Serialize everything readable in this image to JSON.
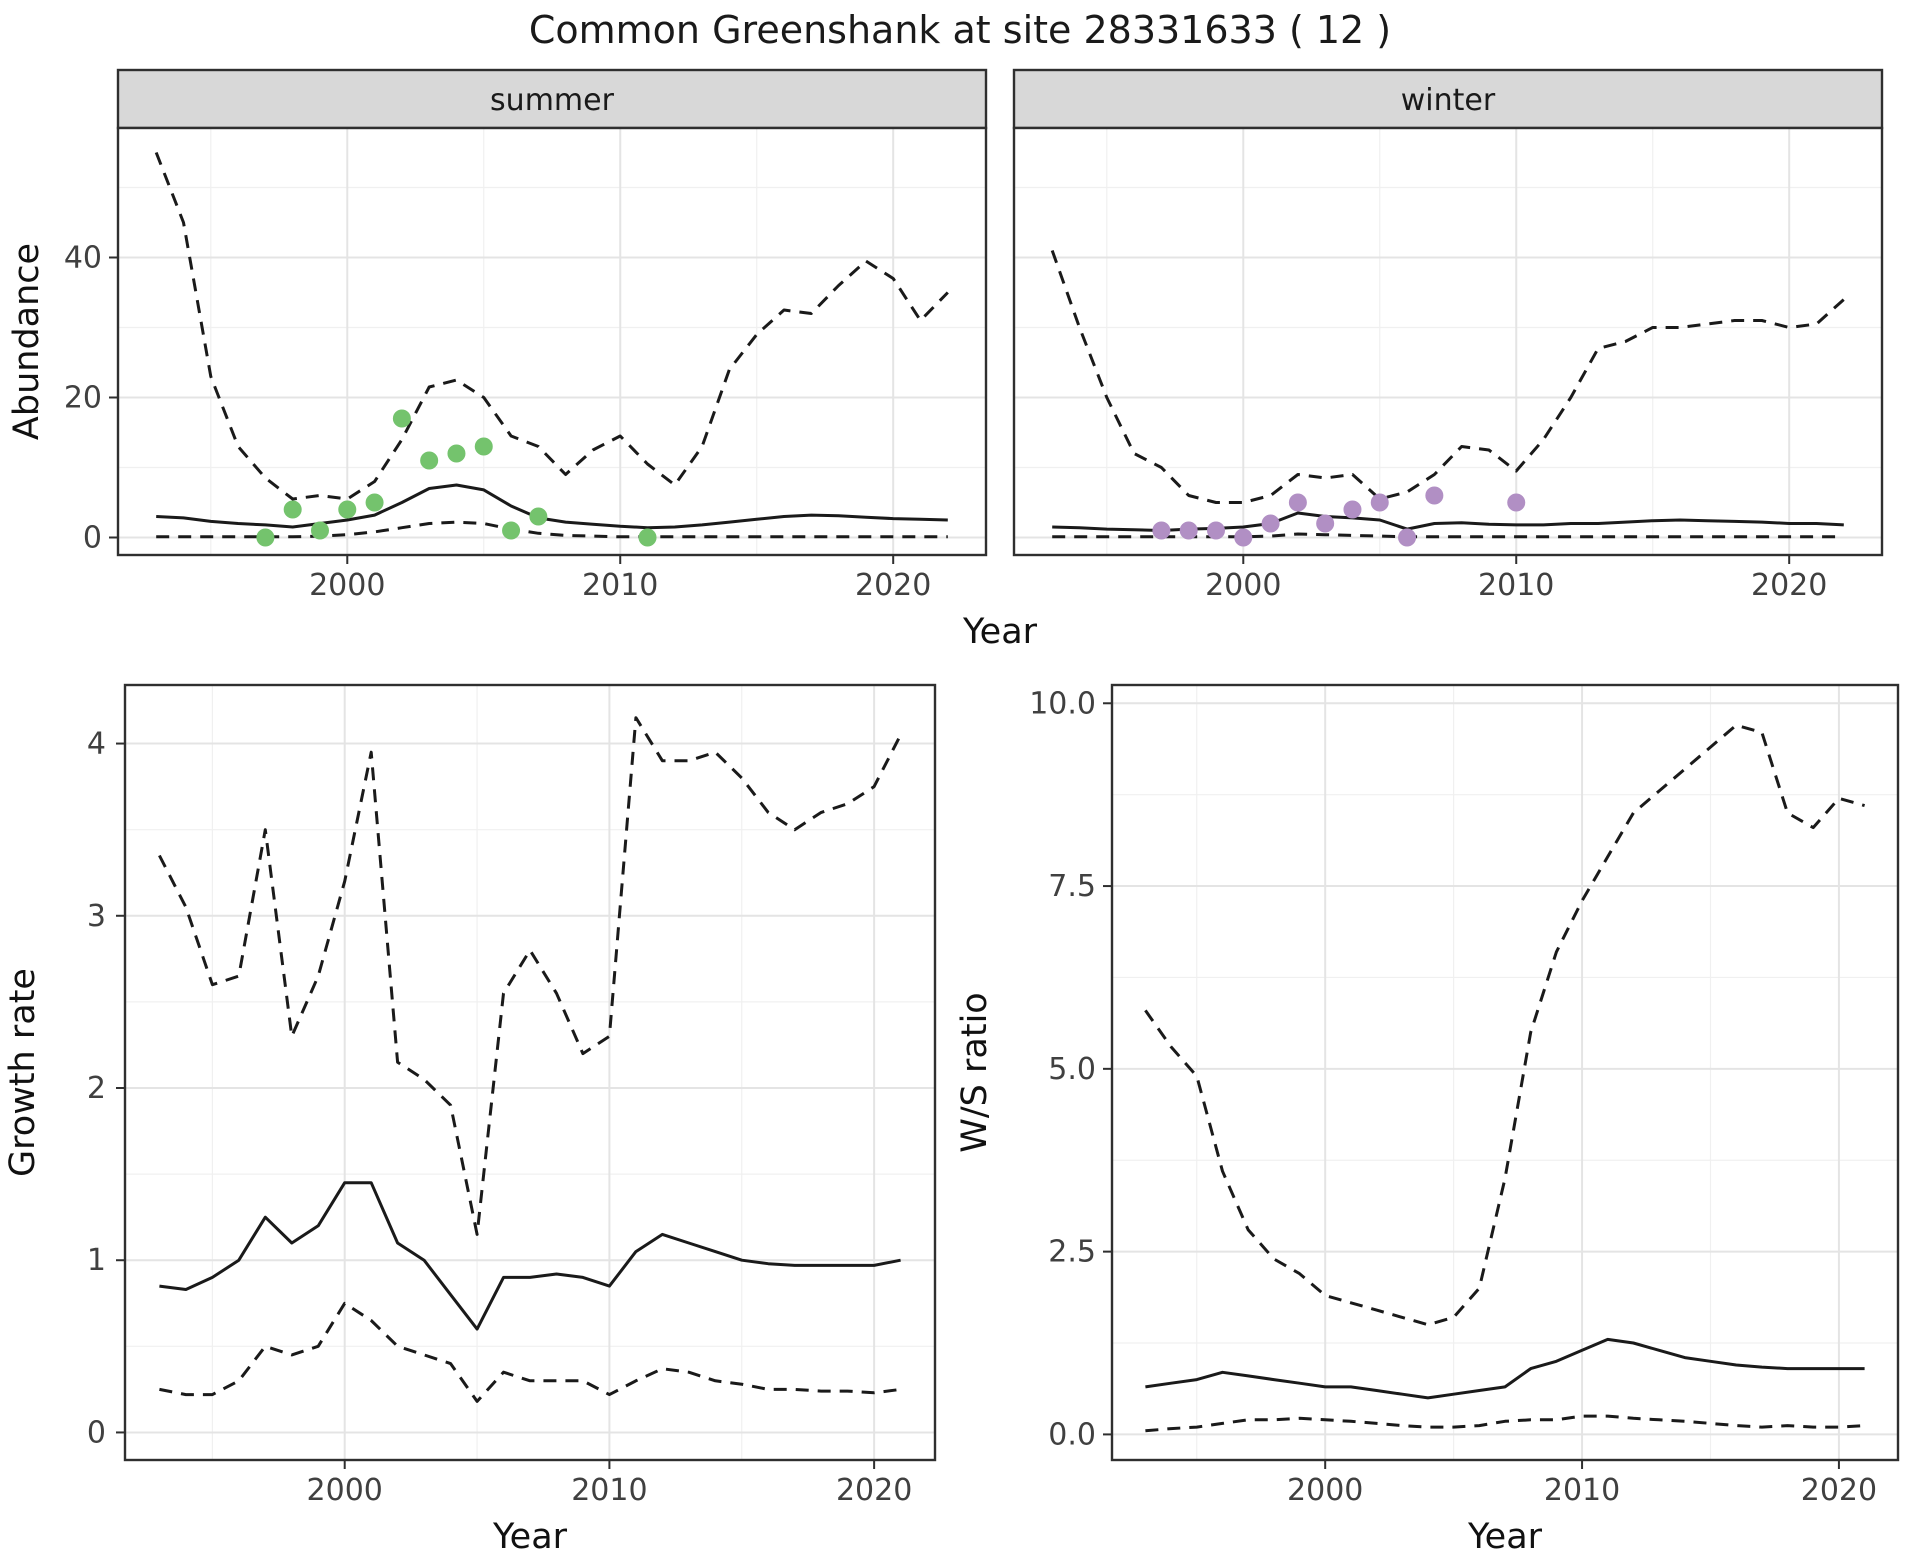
{
  "title": "Common Greenshank at site 28331633 ( 12 )",
  "colors": {
    "line": "#1a1a1a",
    "summer_points": "#74c36d",
    "winter_points": "#b18fc4",
    "strip_fill": "#d8d8d8",
    "panel_border": "#2f2f2f",
    "grid_major": "#e4e4e4",
    "grid_minor": "#f0f0f0",
    "tick_text": "#404040",
    "axis_title": "#111111"
  },
  "chart_data": [
    {
      "id": "abundance-summer",
      "type": "line",
      "facet_label": "summer",
      "xlabel": "Year",
      "ylabel": "Abundance",
      "xlim": [
        1991.6,
        2023.4
      ],
      "ylim": [
        -2.5,
        58.5
      ],
      "xticks": [
        2000,
        2010,
        2020
      ],
      "xtick_labels": [
        "2000",
        "2010",
        "2020"
      ],
      "yticks": [
        0,
        20,
        40
      ],
      "ytick_labels": [
        "0",
        "20",
        "40"
      ],
      "x": [
        1993,
        1994,
        1995,
        1996,
        1997,
        1998,
        1999,
        2000,
        2001,
        2002,
        2003,
        2004,
        2005,
        2006,
        2007,
        2008,
        2009,
        2010,
        2011,
        2012,
        2013,
        2014,
        2015,
        2016,
        2017,
        2018,
        2019,
        2020,
        2021,
        2022
      ],
      "series": [
        {
          "name": "upper-95ci",
          "style": "dashed",
          "values": [
            55,
            45,
            23,
            13,
            8.5,
            5.5,
            6,
            5.5,
            8,
            14,
            21.5,
            22.5,
            20,
            14.5,
            13,
            9,
            12.5,
            14.5,
            10.5,
            7.5,
            13,
            24,
            29,
            32.5,
            32,
            36,
            39.5,
            37,
            31,
            35
          ]
        },
        {
          "name": "mean",
          "style": "solid",
          "values": [
            3,
            2.8,
            2.3,
            2,
            1.8,
            1.5,
            2,
            2.5,
            3.2,
            5,
            7,
            7.5,
            6.8,
            4.5,
            2.8,
            2.2,
            1.9,
            1.6,
            1.4,
            1.5,
            1.8,
            2.2,
            2.6,
            3,
            3.2,
            3.1,
            2.9,
            2.7,
            2.6,
            2.5
          ]
        },
        {
          "name": "lower-95ci",
          "style": "dashed",
          "values": [
            0.1,
            0.1,
            0.1,
            0.1,
            0.1,
            0.1,
            0.2,
            0.4,
            0.8,
            1.4,
            2,
            2.2,
            2,
            1.2,
            0.6,
            0.3,
            0.2,
            0.1,
            0.1,
            0.1,
            0.1,
            0.1,
            0.1,
            0.1,
            0.1,
            0.1,
            0.1,
            0.1,
            0.1,
            0.1
          ]
        }
      ],
      "points": {
        "name": "observed-counts-summer",
        "color": "#74c36d",
        "x": [
          1997,
          1998,
          1999,
          2000,
          2001,
          2002,
          2003,
          2004,
          2005,
          2006,
          2007,
          2011
        ],
        "y": [
          0,
          4,
          1,
          4,
          5,
          17,
          11,
          12,
          13,
          1,
          3,
          0
        ]
      }
    },
    {
      "id": "abundance-winter",
      "type": "line",
      "facet_label": "winter",
      "xlabel": "Year",
      "ylabel": "Abundance",
      "xlim": [
        1991.6,
        2023.4
      ],
      "ylim": [
        -2.5,
        58.5
      ],
      "xticks": [
        2000,
        2010,
        2020
      ],
      "xtick_labels": [
        "2000",
        "2010",
        "2020"
      ],
      "yticks": [
        0,
        20,
        40
      ],
      "ytick_labels": [
        "0",
        "20",
        "40"
      ],
      "x": [
        1993,
        1994,
        1995,
        1996,
        1997,
        1998,
        1999,
        2000,
        2001,
        2002,
        2003,
        2004,
        2005,
        2006,
        2007,
        2008,
        2009,
        2010,
        2011,
        2012,
        2013,
        2014,
        2015,
        2016,
        2017,
        2018,
        2019,
        2020,
        2021,
        2022
      ],
      "series": [
        {
          "name": "upper-95ci",
          "style": "dashed",
          "values": [
            41,
            30,
            20,
            12,
            10,
            6,
            5,
            5,
            6,
            9,
            8.5,
            9,
            5.5,
            6.5,
            9,
            13,
            12.5,
            9.5,
            14,
            20,
            27,
            28,
            30,
            30,
            30.5,
            31,
            31,
            30,
            30.5,
            34
          ]
        },
        {
          "name": "mean",
          "style": "solid",
          "values": [
            1.5,
            1.4,
            1.2,
            1.1,
            1,
            1.2,
            1.3,
            1.5,
            2,
            3.5,
            3,
            2.8,
            2.5,
            1.2,
            2,
            2.1,
            1.9,
            1.8,
            1.8,
            2,
            2,
            2.2,
            2.4,
            2.5,
            2.4,
            2.3,
            2.2,
            2,
            2,
            1.8
          ]
        },
        {
          "name": "lower-95ci",
          "style": "dashed",
          "values": [
            0.1,
            0.1,
            0.1,
            0.1,
            0.1,
            0.1,
            0.1,
            0.1,
            0.2,
            0.5,
            0.4,
            0.3,
            0.2,
            0.1,
            0.1,
            0.1,
            0.1,
            0.1,
            0.1,
            0.1,
            0.1,
            0.1,
            0.1,
            0.1,
            0.1,
            0.1,
            0.1,
            0.1,
            0.1,
            0.1
          ]
        }
      ],
      "points": {
        "name": "observed-counts-winter",
        "color": "#b18fc4",
        "x": [
          1997,
          1998,
          1999,
          2000,
          2001,
          2002,
          2003,
          2004,
          2005,
          2006,
          2007,
          2010
        ],
        "y": [
          1,
          1,
          1,
          0,
          2,
          5,
          2,
          4,
          5,
          0,
          6,
          5
        ]
      }
    },
    {
      "id": "growth-rate",
      "type": "line",
      "facet_label": "",
      "xlabel": "Year",
      "ylabel": "Growth rate",
      "xlim": [
        1991.7,
        2022.3
      ],
      "ylim": [
        -0.16,
        4.34
      ],
      "xticks": [
        2000,
        2010,
        2020
      ],
      "xtick_labels": [
        "2000",
        "2010",
        "2020"
      ],
      "yticks": [
        0,
        1,
        2,
        3,
        4
      ],
      "ytick_labels": [
        "0",
        "1",
        "2",
        "3",
        "4"
      ],
      "x": [
        1993,
        1994,
        1995,
        1996,
        1997,
        1998,
        1999,
        2000,
        2001,
        2002,
        2003,
        2004,
        2005,
        2006,
        2007,
        2008,
        2009,
        2010,
        2011,
        2012,
        2013,
        2014,
        2015,
        2016,
        2017,
        2018,
        2019,
        2020,
        2021
      ],
      "series": [
        {
          "name": "upper-95ci",
          "style": "dashed",
          "values": [
            3.35,
            3.05,
            2.6,
            2.65,
            3.5,
            2.3,
            2.65,
            3.2,
            3.95,
            2.15,
            2.05,
            1.9,
            1.15,
            2.55,
            2.8,
            2.55,
            2.2,
            2.3,
            4.15,
            3.9,
            3.9,
            3.95,
            3.8,
            3.6,
            3.5,
            3.6,
            3.65,
            3.75,
            4.05
          ]
        },
        {
          "name": "mean",
          "style": "solid",
          "values": [
            0.85,
            0.83,
            0.9,
            1.0,
            1.25,
            1.1,
            1.2,
            1.45,
            1.45,
            1.1,
            1.0,
            0.8,
            0.6,
            0.9,
            0.9,
            0.92,
            0.9,
            0.85,
            1.05,
            1.15,
            1.1,
            1.05,
            1.0,
            0.98,
            0.97,
            0.97,
            0.97,
            0.97,
            1.0
          ]
        },
        {
          "name": "lower-95ci",
          "style": "dashed",
          "values": [
            0.25,
            0.22,
            0.22,
            0.3,
            0.5,
            0.45,
            0.5,
            0.75,
            0.65,
            0.5,
            0.45,
            0.4,
            0.18,
            0.35,
            0.3,
            0.3,
            0.3,
            0.22,
            0.3,
            0.37,
            0.35,
            0.3,
            0.28,
            0.25,
            0.25,
            0.24,
            0.24,
            0.23,
            0.25
          ]
        }
      ]
    },
    {
      "id": "ws-ratio",
      "type": "line",
      "facet_label": "",
      "xlabel": "Year",
      "ylabel": "W/S ratio",
      "xlim": [
        1991.7,
        2022.3
      ],
      "ylim": [
        -0.35,
        10.25
      ],
      "xticks": [
        2000,
        2010,
        2020
      ],
      "xtick_labels": [
        "2000",
        "2010",
        "2020"
      ],
      "yticks": [
        0,
        2.5,
        5,
        7.5,
        10
      ],
      "ytick_labels": [
        "0.0",
        "2.5",
        "5.0",
        "7.5",
        "10.0"
      ],
      "x": [
        1993,
        1994,
        1995,
        1996,
        1997,
        1998,
        1999,
        2000,
        2001,
        2002,
        2003,
        2004,
        2005,
        2006,
        2007,
        2008,
        2009,
        2010,
        2011,
        2012,
        2013,
        2014,
        2015,
        2016,
        2017,
        2018,
        2019,
        2020,
        2021
      ],
      "series": [
        {
          "name": "upper-95ci",
          "style": "dashed",
          "values": [
            5.8,
            5.3,
            4.9,
            3.6,
            2.8,
            2.4,
            2.2,
            1.9,
            1.8,
            1.7,
            1.6,
            1.5,
            1.6,
            2.0,
            3.5,
            5.5,
            6.6,
            7.3,
            7.9,
            8.5,
            8.8,
            9.1,
            9.4,
            9.7,
            9.6,
            8.5,
            8.3,
            8.7,
            8.6
          ]
        },
        {
          "name": "mean",
          "style": "solid",
          "values": [
            0.65,
            0.7,
            0.75,
            0.85,
            0.8,
            0.75,
            0.7,
            0.65,
            0.65,
            0.6,
            0.55,
            0.5,
            0.55,
            0.6,
            0.65,
            0.9,
            1.0,
            1.15,
            1.3,
            1.25,
            1.15,
            1.05,
            1.0,
            0.95,
            0.92,
            0.9,
            0.9,
            0.9,
            0.9
          ]
        },
        {
          "name": "lower-95ci",
          "style": "dashed",
          "values": [
            0.05,
            0.08,
            0.1,
            0.15,
            0.2,
            0.2,
            0.22,
            0.2,
            0.18,
            0.15,
            0.12,
            0.1,
            0.1,
            0.12,
            0.18,
            0.2,
            0.2,
            0.25,
            0.25,
            0.22,
            0.2,
            0.18,
            0.15,
            0.12,
            0.1,
            0.12,
            0.1,
            0.1,
            0.12
          ]
        }
      ]
    }
  ]
}
